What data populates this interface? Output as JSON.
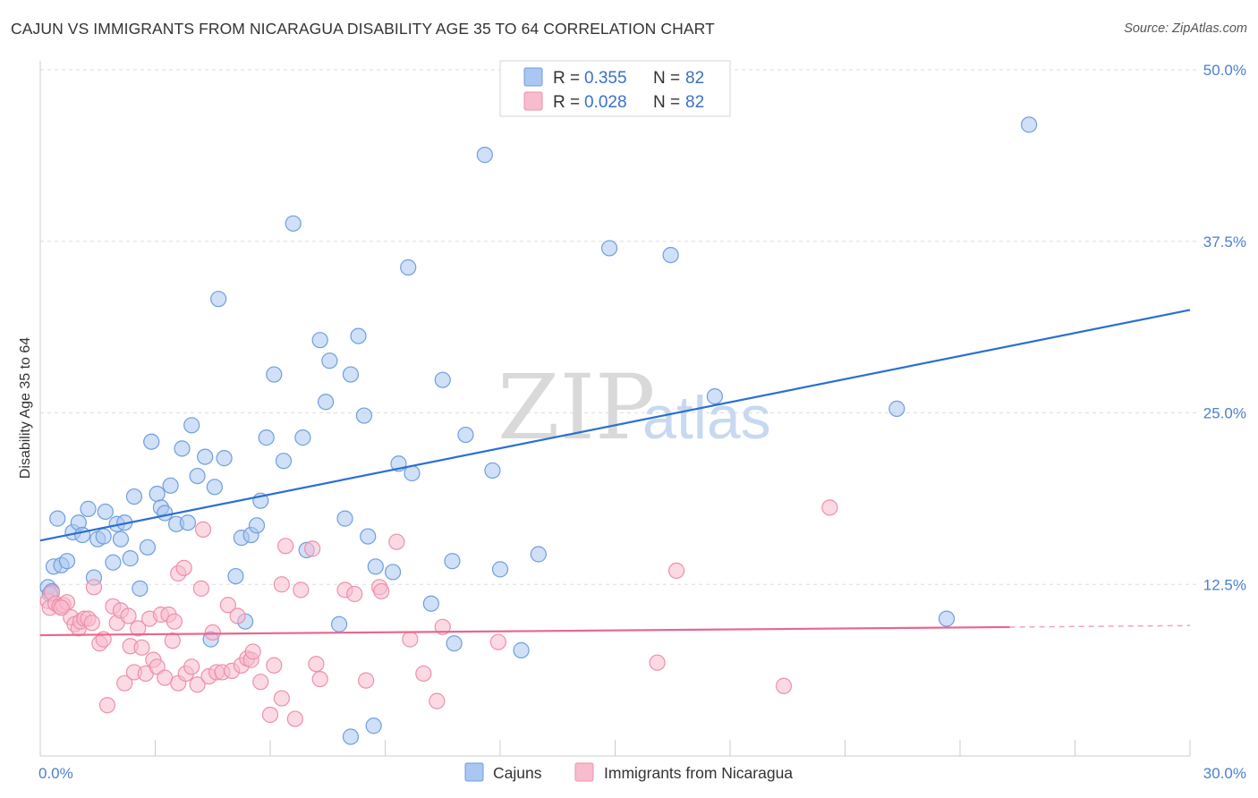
{
  "title": "CAJUN VS IMMIGRANTS FROM NICARAGUA DISABILITY AGE 35 TO 64 CORRELATION CHART",
  "source": "Source: ZipAtlas.com",
  "watermark": {
    "zip": "ZIP",
    "atlas": "atlas"
  },
  "colors": {
    "cajun_fill": "#a9c7f0",
    "cajun_stroke": "#6f9ee0",
    "cajun_line": "#2b6fd1",
    "nic_fill": "#f7bccd",
    "nic_stroke": "#ee8fab",
    "nic_line": "#e8678f",
    "grid": "#dddddd",
    "tick_label": "#4a7fd0"
  },
  "legend": {
    "rows": [
      {
        "r_label": "R =",
        "r_value": "0.355",
        "n_label": "N =",
        "n_value": "82"
      },
      {
        "r_label": "R =",
        "r_value": "0.028",
        "n_label": "N =",
        "n_value": "82"
      }
    ]
  },
  "chart_data": {
    "type": "scatter",
    "title": "CAJUN VS IMMIGRANTS FROM NICARAGUA DISABILITY AGE 35 TO 64 CORRELATION CHART",
    "xlabel": "",
    "ylabel": "Disability Age 35 to 64",
    "xlim": [
      0,
      30
    ],
    "ylim": [
      0,
      50
    ],
    "x_tick_labels": [
      "0.0%",
      "30.0%"
    ],
    "y_ticks": [
      12.5,
      25.0,
      37.5,
      50.0
    ],
    "y_tick_labels": [
      "12.5%",
      "25.0%",
      "37.5%",
      "50.0%"
    ],
    "series": [
      {
        "name": "Cajuns",
        "r": 0.355,
        "n": 82,
        "trend": {
          "x": [
            0,
            30
          ],
          "y": [
            15.7,
            32.5
          ]
        },
        "points": [
          [
            0.2,
            12.3
          ],
          [
            0.3,
            12.0
          ],
          [
            0.35,
            13.8
          ],
          [
            0.45,
            17.3
          ],
          [
            0.55,
            13.9
          ],
          [
            0.7,
            14.2
          ],
          [
            0.85,
            16.3
          ],
          [
            1.0,
            17.0
          ],
          [
            1.1,
            16.1
          ],
          [
            1.25,
            18.0
          ],
          [
            1.4,
            13.0
          ],
          [
            1.5,
            15.8
          ],
          [
            1.65,
            16.0
          ],
          [
            1.7,
            17.8
          ],
          [
            1.9,
            14.1
          ],
          [
            2.0,
            16.9
          ],
          [
            2.1,
            15.8
          ],
          [
            2.2,
            17.0
          ],
          [
            2.35,
            14.4
          ],
          [
            2.45,
            18.9
          ],
          [
            2.6,
            12.2
          ],
          [
            2.8,
            15.2
          ],
          [
            2.9,
            22.9
          ],
          [
            3.05,
            19.1
          ],
          [
            3.15,
            18.1
          ],
          [
            3.25,
            17.7
          ],
          [
            3.4,
            19.7
          ],
          [
            3.55,
            16.9
          ],
          [
            3.7,
            22.4
          ],
          [
            3.85,
            17.0
          ],
          [
            3.95,
            24.1
          ],
          [
            4.1,
            20.4
          ],
          [
            4.3,
            21.8
          ],
          [
            4.45,
            8.5
          ],
          [
            4.55,
            19.6
          ],
          [
            4.65,
            33.3
          ],
          [
            4.8,
            21.7
          ],
          [
            5.1,
            13.1
          ],
          [
            5.25,
            15.9
          ],
          [
            5.35,
            9.8
          ],
          [
            5.5,
            16.1
          ],
          [
            5.65,
            16.8
          ],
          [
            5.75,
            18.6
          ],
          [
            5.9,
            23.2
          ],
          [
            6.1,
            27.8
          ],
          [
            6.35,
            21.5
          ],
          [
            6.6,
            38.8
          ],
          [
            6.85,
            23.2
          ],
          [
            6.95,
            15.0
          ],
          [
            7.3,
            30.3
          ],
          [
            7.45,
            25.8
          ],
          [
            7.55,
            28.8
          ],
          [
            7.95,
            17.3
          ],
          [
            7.8,
            9.6
          ],
          [
            8.1,
            27.8
          ],
          [
            8.1,
            1.4
          ],
          [
            8.3,
            30.6
          ],
          [
            8.45,
            24.8
          ],
          [
            8.55,
            16.0
          ],
          [
            8.75,
            13.8
          ],
          [
            8.7,
            2.2
          ],
          [
            9.2,
            13.4
          ],
          [
            9.35,
            21.3
          ],
          [
            9.6,
            35.6
          ],
          [
            9.7,
            20.6
          ],
          [
            10.2,
            11.1
          ],
          [
            10.5,
            27.4
          ],
          [
            10.75,
            14.2
          ],
          [
            10.8,
            8.2
          ],
          [
            11.1,
            23.4
          ],
          [
            11.6,
            43.8
          ],
          [
            11.8,
            20.8
          ],
          [
            12.0,
            13.6
          ],
          [
            12.55,
            7.7
          ],
          [
            13.0,
            14.7
          ],
          [
            14.85,
            37.0
          ],
          [
            16.45,
            36.5
          ],
          [
            17.6,
            26.2
          ],
          [
            22.35,
            25.3
          ],
          [
            23.65,
            10.0
          ],
          [
            25.8,
            46.0
          ],
          [
            0.25,
            11.8
          ]
        ]
      },
      {
        "name": "Immigrants from Nicaragua",
        "r": 0.028,
        "n": 82,
        "trend": {
          "x": [
            0,
            30
          ],
          "y": [
            8.8,
            9.5
          ]
        },
        "points": [
          [
            0.2,
            11.3
          ],
          [
            0.25,
            10.8
          ],
          [
            0.3,
            11.9
          ],
          [
            0.4,
            11.1
          ],
          [
            0.5,
            10.9
          ],
          [
            0.6,
            11.0
          ],
          [
            0.7,
            11.2
          ],
          [
            0.8,
            10.1
          ],
          [
            0.9,
            9.6
          ],
          [
            1.0,
            9.3
          ],
          [
            1.05,
            9.8
          ],
          [
            1.15,
            10.0
          ],
          [
            1.25,
            10.0
          ],
          [
            1.35,
            9.7
          ],
          [
            1.4,
            12.3
          ],
          [
            1.55,
            8.2
          ],
          [
            1.65,
            8.5
          ],
          [
            1.75,
            3.7
          ],
          [
            1.9,
            10.9
          ],
          [
            2.0,
            9.7
          ],
          [
            2.1,
            10.6
          ],
          [
            2.2,
            5.3
          ],
          [
            2.3,
            10.2
          ],
          [
            2.35,
            8.0
          ],
          [
            2.45,
            6.1
          ],
          [
            2.55,
            9.3
          ],
          [
            2.65,
            7.9
          ],
          [
            2.75,
            6.0
          ],
          [
            2.85,
            10.0
          ],
          [
            2.95,
            7.0
          ],
          [
            3.05,
            6.5
          ],
          [
            3.15,
            10.3
          ],
          [
            3.25,
            5.7
          ],
          [
            3.35,
            10.3
          ],
          [
            3.45,
            8.4
          ],
          [
            3.5,
            9.8
          ],
          [
            3.6,
            13.3
          ],
          [
            3.6,
            5.3
          ],
          [
            3.75,
            13.7
          ],
          [
            3.8,
            6.0
          ],
          [
            3.95,
            6.5
          ],
          [
            4.1,
            5.2
          ],
          [
            4.2,
            12.2
          ],
          [
            4.25,
            16.5
          ],
          [
            4.4,
            5.8
          ],
          [
            4.5,
            9.0
          ],
          [
            4.6,
            6.1
          ],
          [
            4.75,
            6.1
          ],
          [
            4.9,
            11.0
          ],
          [
            5.0,
            6.2
          ],
          [
            5.15,
            10.2
          ],
          [
            5.25,
            6.6
          ],
          [
            5.4,
            7.1
          ],
          [
            5.5,
            7.0
          ],
          [
            5.55,
            7.6
          ],
          [
            5.75,
            5.4
          ],
          [
            6.0,
            3.0
          ],
          [
            6.1,
            6.6
          ],
          [
            6.3,
            12.5
          ],
          [
            6.4,
            15.3
          ],
          [
            6.3,
            4.2
          ],
          [
            6.65,
            2.7
          ],
          [
            6.8,
            12.1
          ],
          [
            7.1,
            15.1
          ],
          [
            7.2,
            6.7
          ],
          [
            7.3,
            5.6
          ],
          [
            7.95,
            12.1
          ],
          [
            8.2,
            11.8
          ],
          [
            8.5,
            5.5
          ],
          [
            8.85,
            12.3
          ],
          [
            9.3,
            15.6
          ],
          [
            9.65,
            8.5
          ],
          [
            10.0,
            6.0
          ],
          [
            10.35,
            4.0
          ],
          [
            10.5,
            9.4
          ],
          [
            11.95,
            8.3
          ],
          [
            16.1,
            6.8
          ],
          [
            16.6,
            13.5
          ],
          [
            19.4,
            5.1
          ],
          [
            20.6,
            18.1
          ],
          [
            8.9,
            12.0
          ],
          [
            0.55,
            10.8
          ]
        ]
      }
    ]
  },
  "bottom_legend": {
    "series_a": "Cajuns",
    "series_b": "Immigrants from Nicaragua"
  }
}
